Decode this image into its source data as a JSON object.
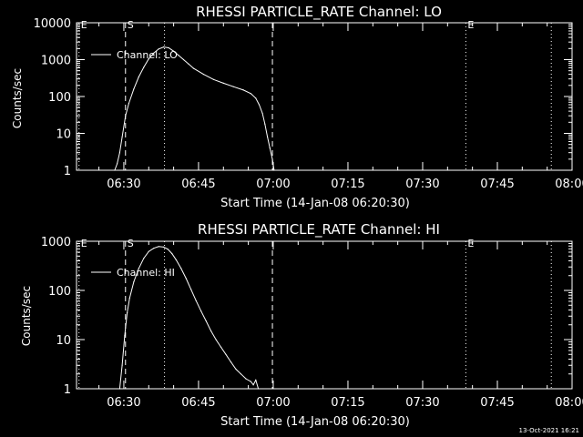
{
  "chart_data": [
    {
      "type": "line",
      "title": "RHESSI PARTICLE_RATE Channel: LO",
      "xlabel": "Start Time (14-Jan-08 06:20:30)",
      "ylabel": "Counts/sec",
      "yscale": "log",
      "ylim": [
        1,
        10000
      ],
      "xlim": [
        "06:20:30",
        "08:00:00"
      ],
      "xticks": [
        "06:30",
        "06:45",
        "07:00",
        "07:15",
        "07:30",
        "07:45",
        "08:00"
      ],
      "yticks": [
        "1",
        "10",
        "100",
        "1000",
        "10000"
      ],
      "markers": [
        {
          "label": "E",
          "time": "06:21:00",
          "style": "dotted"
        },
        {
          "label": "S",
          "time": "06:30:20",
          "style": "dashed"
        },
        {
          "label": "",
          "time": "06:38:10",
          "style": "dotted"
        },
        {
          "label": "",
          "time": "06:59:50",
          "style": "dashed"
        },
        {
          "label": "E",
          "time": "07:38:40",
          "style": "dotted"
        },
        {
          "label": "",
          "time": "07:55:50",
          "style": "dotted"
        }
      ],
      "series": [
        {
          "name": "Channel: LO",
          "x": [
            "06:28:10",
            "06:28:40",
            "06:29:10",
            "06:29:40",
            "06:30:20",
            "06:31:00",
            "06:32:00",
            "06:33:00",
            "06:34:00",
            "06:35:00",
            "06:36:00",
            "06:37:00",
            "06:38:00",
            "06:39:00",
            "06:40:00",
            "06:41:00",
            "06:42:00",
            "06:43:00",
            "06:44:00",
            "06:46:00",
            "06:48:00",
            "06:50:00",
            "06:52:00",
            "06:54:00",
            "06:55:30",
            "06:56:30",
            "06:57:10",
            "06:57:50",
            "06:58:20",
            "06:58:50",
            "06:59:20",
            "06:59:50",
            "07:00:10"
          ],
          "values": [
            1,
            1.5,
            3,
            8,
            30,
            65,
            160,
            340,
            620,
            1050,
            1500,
            1950,
            2200,
            2100,
            1700,
            1300,
            1000,
            760,
            580,
            400,
            290,
            230,
            185,
            150,
            120,
            90,
            60,
            35,
            18,
            8,
            4,
            2,
            1
          ]
        }
      ]
    },
    {
      "type": "line",
      "title": "RHESSI PARTICLE_RATE Channel: HI",
      "xlabel": "Start Time (14-Jan-08 06:20:30)",
      "ylabel": "Counts/sec",
      "yscale": "log",
      "ylim": [
        1,
        1000
      ],
      "xlim": [
        "06:20:30",
        "08:00:00"
      ],
      "xticks": [
        "06:30",
        "06:45",
        "07:00",
        "07:15",
        "07:30",
        "07:45",
        "08:00"
      ],
      "yticks": [
        "1",
        "10",
        "100",
        "1000"
      ],
      "markers": [
        {
          "label": "E",
          "time": "06:21:00",
          "style": "dotted"
        },
        {
          "label": "S",
          "time": "06:30:20",
          "style": "dashed"
        },
        {
          "label": "",
          "time": "06:38:10",
          "style": "dotted"
        },
        {
          "label": "",
          "time": "06:59:50",
          "style": "dashed"
        },
        {
          "label": "E",
          "time": "07:38:40",
          "style": "dotted"
        },
        {
          "label": "",
          "time": "07:55:50",
          "style": "dotted"
        }
      ],
      "series": [
        {
          "name": "Channel: HI",
          "x": [
            "06:29:10",
            "06:29:40",
            "06:30:10",
            "06:30:40",
            "06:31:10",
            "06:32:00",
            "06:33:00",
            "06:34:00",
            "06:35:00",
            "06:36:00",
            "06:37:00",
            "06:38:00",
            "06:38:50",
            "06:39:40",
            "06:40:30",
            "06:41:30",
            "06:42:30",
            "06:43:30",
            "06:44:30",
            "06:45:30",
            "06:46:30",
            "06:47:30",
            "06:48:30",
            "06:49:30",
            "06:50:30",
            "06:51:30",
            "06:52:30",
            "06:53:30",
            "06:54:30",
            "06:55:30",
            "06:56:00",
            "06:56:30",
            "06:57:00"
          ],
          "values": [
            1,
            3,
            12,
            35,
            70,
            150,
            280,
            450,
            620,
            720,
            780,
            760,
            690,
            560,
            420,
            280,
            175,
            105,
            62,
            38,
            24,
            15,
            10,
            7,
            5,
            3.5,
            2.5,
            2,
            1.6,
            1.4,
            1.2,
            1.5,
            1
          ]
        }
      ]
    }
  ],
  "timestamp": "13-Oct-2021 16:21"
}
